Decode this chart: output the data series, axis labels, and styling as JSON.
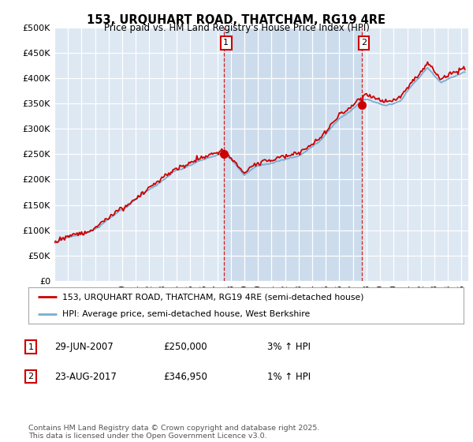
{
  "title": "153, URQUHART ROAD, THATCHAM, RG19 4RE",
  "subtitle": "Price paid vs. HM Land Registry's House Price Index (HPI)",
  "ytick_values": [
    0,
    50000,
    100000,
    150000,
    200000,
    250000,
    300000,
    350000,
    400000,
    450000,
    500000
  ],
  "ylim": [
    0,
    500000
  ],
  "xlim_start": 1995.0,
  "xlim_end": 2025.5,
  "hpi_color": "#7aadcf",
  "price_color": "#cc0000",
  "marker1_date": 2007.5,
  "marker1_price": 250000,
  "marker1_label": "29-JUN-2007",
  "marker1_price_str": "£250,000",
  "marker1_hpi_str": "3% ↑ HPI",
  "marker2_date": 2017.65,
  "marker2_price": 346950,
  "marker2_label": "23-AUG-2017",
  "marker2_price_str": "£346,950",
  "marker2_hpi_str": "1% ↑ HPI",
  "legend_line1": "153, URQUHART ROAD, THATCHAM, RG19 4RE (semi-detached house)",
  "legend_line2": "HPI: Average price, semi-detached house, West Berkshire",
  "footer": "Contains HM Land Registry data © Crown copyright and database right 2025.\nThis data is licensed under the Open Government Licence v3.0.",
  "background_color": "#dde8f3",
  "shaded_color": "#ccdcec",
  "grid_color": "#ffffff"
}
